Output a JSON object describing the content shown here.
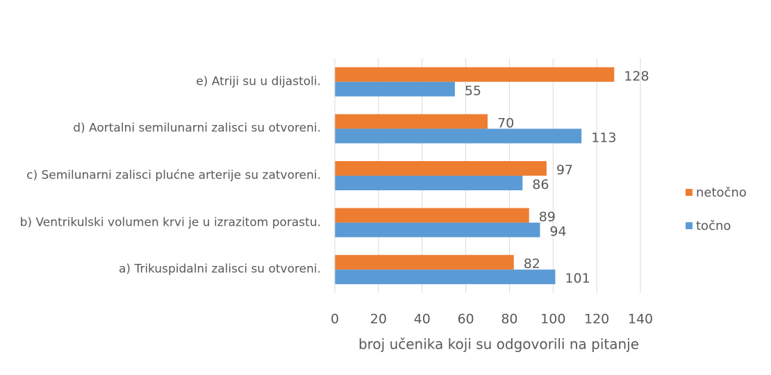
{
  "chart_data": {
    "type": "bar",
    "orientation": "horizontal",
    "x_label": "broj učenika koji su odgovorili na pitanje",
    "categories": [
      "e) Atriji su u dijastoli.",
      "d) Aortalni semilunarni zalisci su otvoreni.",
      "c) Semilunarni zalisci plućne arterije su zatvoreni.",
      "b) Ventrikulski volumen krvi je u izrazitom porastu.",
      "a) Trikuspidalni zalisci su otvoreni."
    ],
    "series": [
      {
        "name": "netočno",
        "color": "#ed7d31",
        "values": [
          128,
          70,
          97,
          89,
          82
        ]
      },
      {
        "name": "točno",
        "color": "#5b9bd5",
        "values": [
          55,
          113,
          86,
          94,
          101
        ]
      }
    ],
    "xlim": [
      0,
      140
    ],
    "xticks": [
      0,
      20,
      40,
      60,
      80,
      100,
      120,
      140
    ],
    "grid": true,
    "legend": "right"
  }
}
